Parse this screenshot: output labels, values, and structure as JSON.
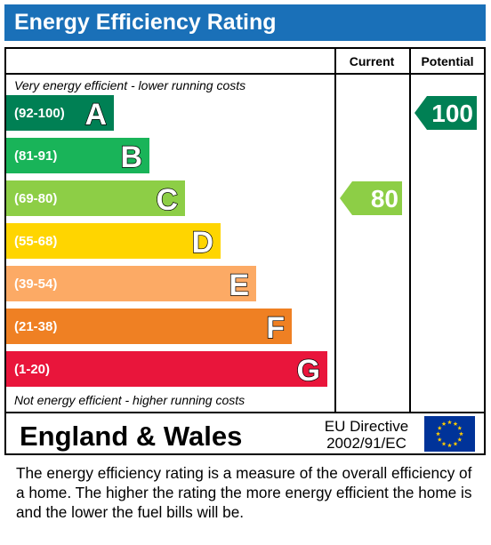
{
  "header": {
    "title": "Energy Efficiency Rating"
  },
  "columns": {
    "current": "Current",
    "potential": "Potential"
  },
  "notes": {
    "top": "Very energy efficient - lower running costs",
    "bottom": "Not energy efficient - higher running costs"
  },
  "footer": {
    "region": "England & Wales",
    "directive_line1": "EU Directive",
    "directive_line2": "2002/91/EC",
    "flag_icon": "eu-flag-icon"
  },
  "caption": "The energy efficiency rating is a measure of the overall efficiency of a home.  The higher the rating the more energy efficient the home is and the lower the fuel bills will be.",
  "chart_data": {
    "type": "bar",
    "title": "Energy Efficiency Rating",
    "bands": [
      {
        "letter": "A",
        "range": "(92-100)",
        "min": 92,
        "max": 100,
        "color": "#008054"
      },
      {
        "letter": "B",
        "range": "(81-91)",
        "min": 81,
        "max": 91,
        "color": "#19b459"
      },
      {
        "letter": "C",
        "range": "(69-80)",
        "min": 69,
        "max": 80,
        "color": "#8dce46"
      },
      {
        "letter": "D",
        "range": "(55-68)",
        "min": 55,
        "max": 68,
        "color": "#ffd500"
      },
      {
        "letter": "E",
        "range": "(39-54)",
        "min": 39,
        "max": 54,
        "color": "#fcaa65"
      },
      {
        "letter": "F",
        "range": "(21-38)",
        "min": 21,
        "max": 38,
        "color": "#ef8023"
      },
      {
        "letter": "G",
        "range": "(1-20)",
        "min": 1,
        "max": 20,
        "color": "#e9153b"
      }
    ],
    "series": [
      {
        "name": "Current",
        "value": 80,
        "color": "#8dce46"
      },
      {
        "name": "Potential",
        "value": 100,
        "color": "#008054"
      }
    ]
  }
}
